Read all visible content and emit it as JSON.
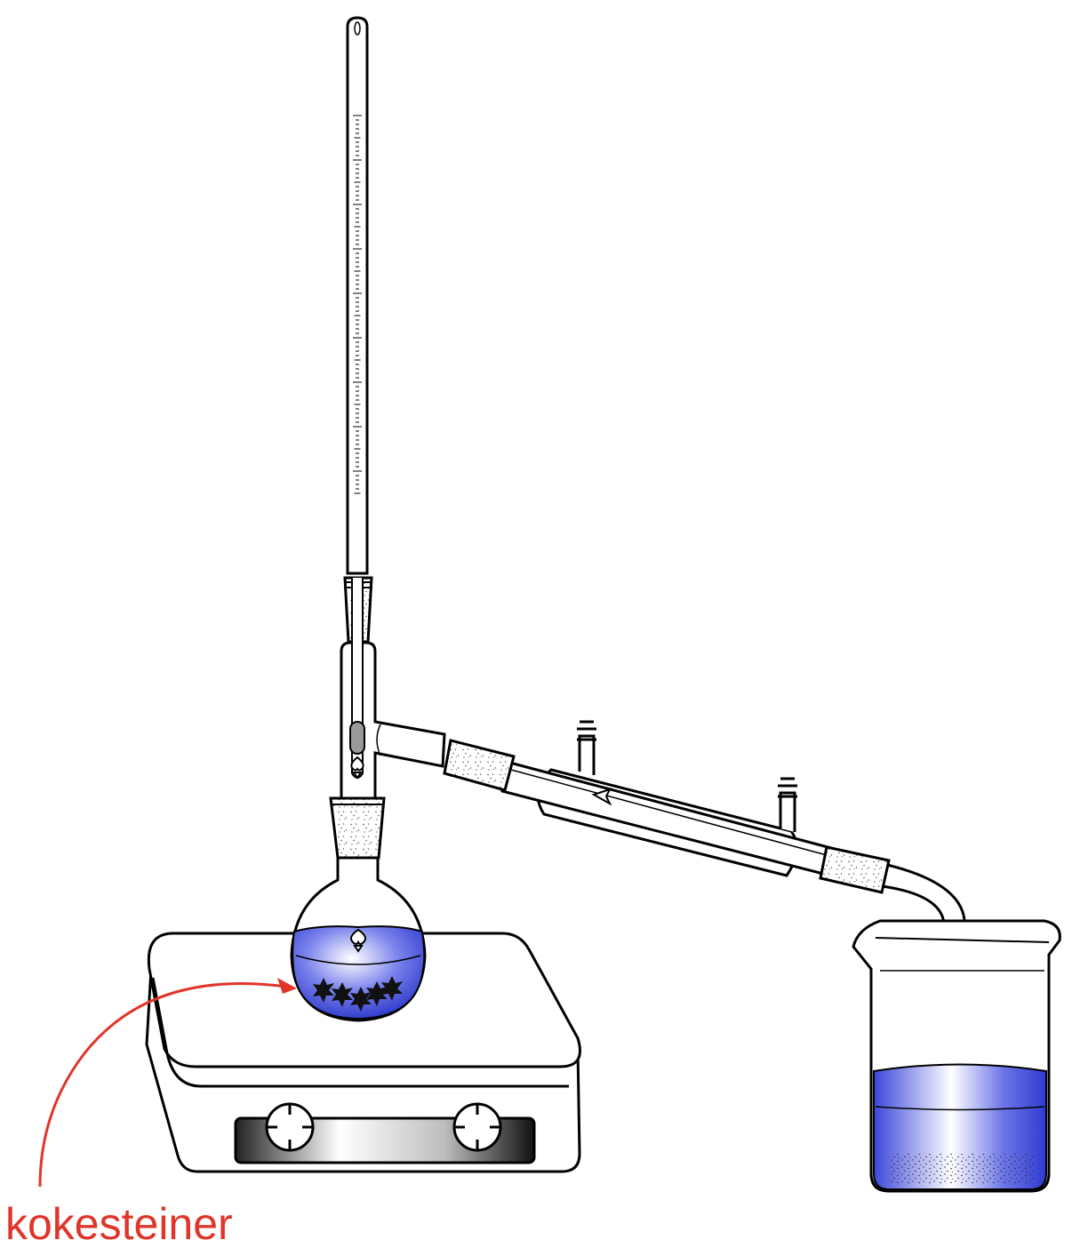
{
  "annotation": {
    "label": "kokesteiner",
    "color": "#e0352b"
  },
  "colors": {
    "liquid": "#3f4de0",
    "liquid_light": "#c9ccf7",
    "outline": "#000000",
    "glass": "#ffffff"
  }
}
